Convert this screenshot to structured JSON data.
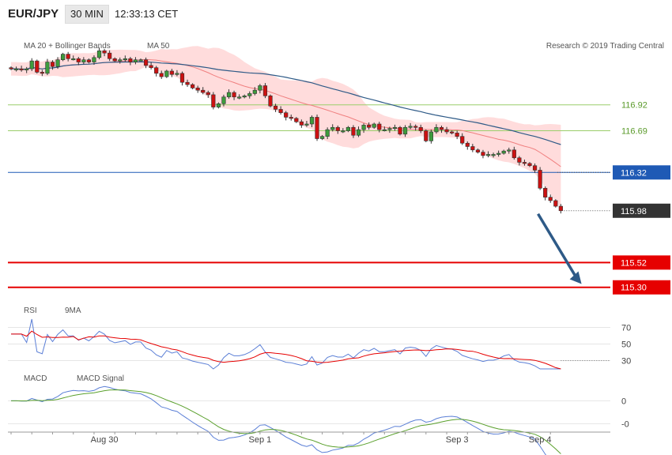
{
  "header": {
    "symbol": "EUR/JPY",
    "timeframe": "30 MIN",
    "time": "12:33:13 CET"
  },
  "copyright": "Research © 2019 Trading Central",
  "colors": {
    "up": "#3d9c3d",
    "down": "#cc1111",
    "ma20": "#f08080",
    "bollinger": "#ffd6d6",
    "ma50": "#2e5a87",
    "green_level": "#9acd6a",
    "blue_level": "#1f5ab5",
    "red_level": "#e60000",
    "arrow": "#2e5a87",
    "rsi": "#5b7fd6",
    "rsi9ma": "#e60000",
    "macd": "#5b7fd6",
    "macd_signal": "#5aa02c"
  },
  "chart_data": [
    {
      "type": "candlestick",
      "legend": [
        "MA 20 + Bollinger Bands",
        "MA 50"
      ],
      "ylim": [
        115.2,
        117.36
      ],
      "levels": [
        {
          "value": 116.92,
          "label": "116.92",
          "color": "green"
        },
        {
          "value": 116.69,
          "label": "116.69",
          "color": "green"
        },
        {
          "value": 116.32,
          "label": "116.32",
          "color": "blue"
        },
        {
          "value": 115.52,
          "label": "115.52",
          "color": "red"
        },
        {
          "value": 115.3,
          "label": "115.30",
          "color": "red"
        }
      ],
      "last_price": {
        "value": 115.98,
        "label": "115.98"
      },
      "x_labels": [
        {
          "index": 18,
          "label": "Aug 30"
        },
        {
          "index": 48,
          "label": "Sep 1"
        },
        {
          "index": 86,
          "label": "Sep 3"
        },
        {
          "index": 102,
          "label": "Sep 4"
        }
      ],
      "projection": {
        "from": [
          101,
          115.98
        ],
        "to": [
          110,
          115.33
        ]
      },
      "close": [
        117.24,
        117.24,
        117.23,
        117.24,
        117.31,
        117.21,
        117.2,
        117.3,
        117.26,
        117.32,
        117.37,
        117.33,
        117.33,
        117.3,
        117.32,
        117.3,
        117.34,
        117.4,
        117.38,
        117.33,
        117.31,
        117.32,
        117.33,
        117.3,
        117.32,
        117.32,
        117.27,
        117.25,
        117.2,
        117.17,
        117.22,
        117.19,
        117.2,
        117.12,
        117.1,
        117.07,
        117.05,
        117.03,
        117.01,
        116.9,
        116.93,
        116.99,
        117.03,
        116.99,
        116.99,
        117.0,
        117.02,
        117.05,
        117.09,
        117.0,
        116.91,
        116.88,
        116.85,
        116.81,
        116.8,
        116.77,
        116.74,
        116.75,
        116.81,
        116.62,
        116.64,
        116.7,
        116.72,
        116.69,
        116.69,
        116.72,
        116.65,
        116.7,
        116.74,
        116.72,
        116.75,
        116.7,
        116.7,
        116.71,
        116.72,
        116.66,
        116.72,
        116.73,
        116.72,
        116.69,
        116.6,
        116.68,
        116.72,
        116.7,
        116.68,
        116.67,
        116.64,
        116.58,
        116.55,
        116.52,
        116.5,
        116.47,
        116.48,
        116.48,
        116.49,
        116.51,
        116.52,
        116.45,
        116.41,
        116.4,
        116.38,
        116.34,
        116.18,
        116.1,
        116.07,
        116.02,
        115.98
      ],
      "rsi": {
        "ylim": [
          20,
          80
        ],
        "ticks": [
          70,
          50,
          30
        ],
        "series": [
          "RSI",
          "9MA"
        ]
      },
      "macd": {
        "ticks": [
          0,
          -0.05
        ],
        "tick_labels": [
          "0",
          "-0"
        ],
        "series": [
          "MACD",
          "MACD Signal"
        ]
      }
    }
  ]
}
